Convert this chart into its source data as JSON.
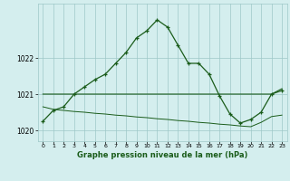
{
  "hours": [
    0,
    1,
    2,
    3,
    4,
    5,
    6,
    7,
    8,
    9,
    10,
    11,
    12,
    13,
    14,
    15,
    16,
    17,
    18,
    19,
    20,
    21,
    22,
    23
  ],
  "main_line": [
    1020.25,
    1020.55,
    1020.65,
    1021.0,
    1021.2,
    1021.4,
    1021.55,
    1021.85,
    1022.15,
    1022.55,
    1022.75,
    1023.05,
    1022.85,
    1022.35,
    1021.85,
    1021.85,
    1021.55,
    1020.95,
    1020.45,
    1020.2,
    1020.3,
    1020.5,
    1021.0,
    1021.1
  ],
  "flat_line": [
    1021.0,
    1021.0,
    1021.0,
    1021.0,
    1021.0,
    1021.0,
    1021.0,
    1021.0,
    1021.0,
    1021.0,
    1021.0,
    1021.0,
    1021.0,
    1021.0,
    1021.0,
    1021.0,
    1021.0,
    1021.0,
    1021.0,
    1021.0,
    1021.0,
    1021.0,
    1021.0,
    1021.15
  ],
  "trend_line": [
    1020.65,
    1020.58,
    1020.55,
    1020.52,
    1020.5,
    1020.47,
    1020.45,
    1020.42,
    1020.4,
    1020.37,
    1020.35,
    1020.32,
    1020.3,
    1020.27,
    1020.25,
    1020.22,
    1020.2,
    1020.17,
    1020.15,
    1020.12,
    1020.1,
    1020.22,
    1020.38,
    1020.42
  ],
  "line_color": "#1a5c1a",
  "bg_color": "#d4eeee",
  "grid_color": "#9ec8c8",
  "xlabel": "Graphe pression niveau de la mer (hPa)",
  "ylim": [
    1019.7,
    1023.5
  ],
  "yticks": [
    1020,
    1021,
    1022
  ],
  "xticks": [
    0,
    1,
    2,
    3,
    4,
    5,
    6,
    7,
    8,
    9,
    10,
    11,
    12,
    13,
    14,
    15,
    16,
    17,
    18,
    19,
    20,
    21,
    22,
    23
  ]
}
